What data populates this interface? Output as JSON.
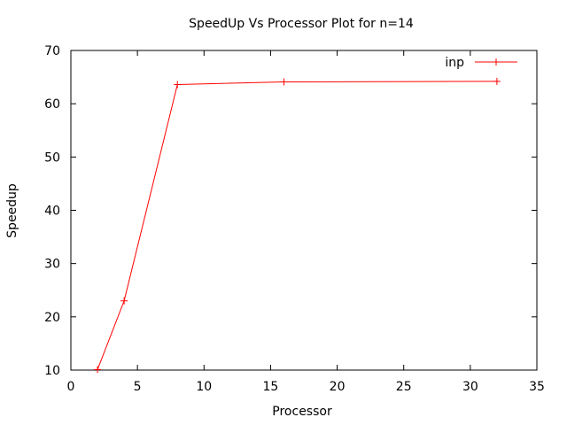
{
  "chart_data": {
    "type": "line",
    "title": "SpeedUp Vs Processor Plot for n=14",
    "xlabel": "Processor",
    "ylabel": "Speedup",
    "xlim": [
      0,
      35
    ],
    "ylim": [
      10,
      70
    ],
    "xticks": [
      0,
      5,
      10,
      15,
      20,
      25,
      30,
      35
    ],
    "yticks": [
      10,
      20,
      30,
      40,
      50,
      60,
      70
    ],
    "grid": false,
    "legend_position": "top-right",
    "series": [
      {
        "name": "inp",
        "color": "#ff0000",
        "marker": "plus",
        "x": [
          2,
          4,
          8,
          16,
          32
        ],
        "y": [
          10.1,
          23.0,
          63.6,
          64.1,
          64.2
        ]
      }
    ]
  }
}
